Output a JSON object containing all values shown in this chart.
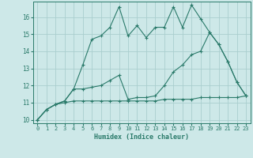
{
  "xlabel": "Humidex (Indice chaleur)",
  "bg_color": "#cde8e8",
  "line_color": "#2a7a6a",
  "grid_color": "#aacece",
  "xlim": [
    -0.5,
    23.5
  ],
  "ylim": [
    9.8,
    16.9
  ],
  "xticks": [
    0,
    1,
    2,
    3,
    4,
    5,
    6,
    7,
    8,
    9,
    10,
    11,
    12,
    13,
    14,
    15,
    16,
    17,
    18,
    19,
    20,
    21,
    22,
    23
  ],
  "yticks": [
    10,
    11,
    12,
    13,
    14,
    15,
    16
  ],
  "line1_x": [
    0,
    1,
    2,
    3,
    4,
    5,
    6,
    7,
    8,
    9,
    10,
    11,
    12,
    13,
    14,
    15,
    16,
    17,
    18,
    19,
    20,
    21,
    22,
    23
  ],
  "line1_y": [
    10.0,
    10.6,
    10.9,
    11.1,
    11.8,
    13.2,
    14.7,
    14.9,
    15.4,
    16.6,
    14.9,
    15.5,
    14.8,
    15.4,
    15.4,
    16.6,
    15.4,
    16.7,
    15.9,
    15.1,
    14.4,
    13.4,
    12.2,
    11.4
  ],
  "line2_x": [
    0,
    1,
    2,
    3,
    4,
    5,
    6,
    7,
    8,
    9,
    10,
    11,
    12,
    13,
    14,
    15,
    16,
    17,
    18,
    19,
    20,
    21,
    22,
    23
  ],
  "line2_y": [
    10.0,
    10.6,
    10.9,
    11.1,
    11.8,
    11.8,
    11.9,
    12.0,
    12.3,
    12.6,
    11.2,
    11.3,
    11.3,
    11.4,
    12.0,
    12.8,
    13.2,
    13.8,
    14.0,
    15.1,
    14.4,
    13.4,
    12.2,
    11.4
  ],
  "line3_x": [
    0,
    1,
    2,
    3,
    4,
    5,
    6,
    7,
    8,
    9,
    10,
    11,
    12,
    13,
    14,
    15,
    16,
    17,
    18,
    19,
    20,
    21,
    22,
    23
  ],
  "line3_y": [
    10.0,
    10.6,
    10.9,
    11.0,
    11.1,
    11.1,
    11.1,
    11.1,
    11.1,
    11.1,
    11.1,
    11.1,
    11.1,
    11.1,
    11.2,
    11.2,
    11.2,
    11.2,
    11.3,
    11.3,
    11.3,
    11.3,
    11.3,
    11.4
  ]
}
